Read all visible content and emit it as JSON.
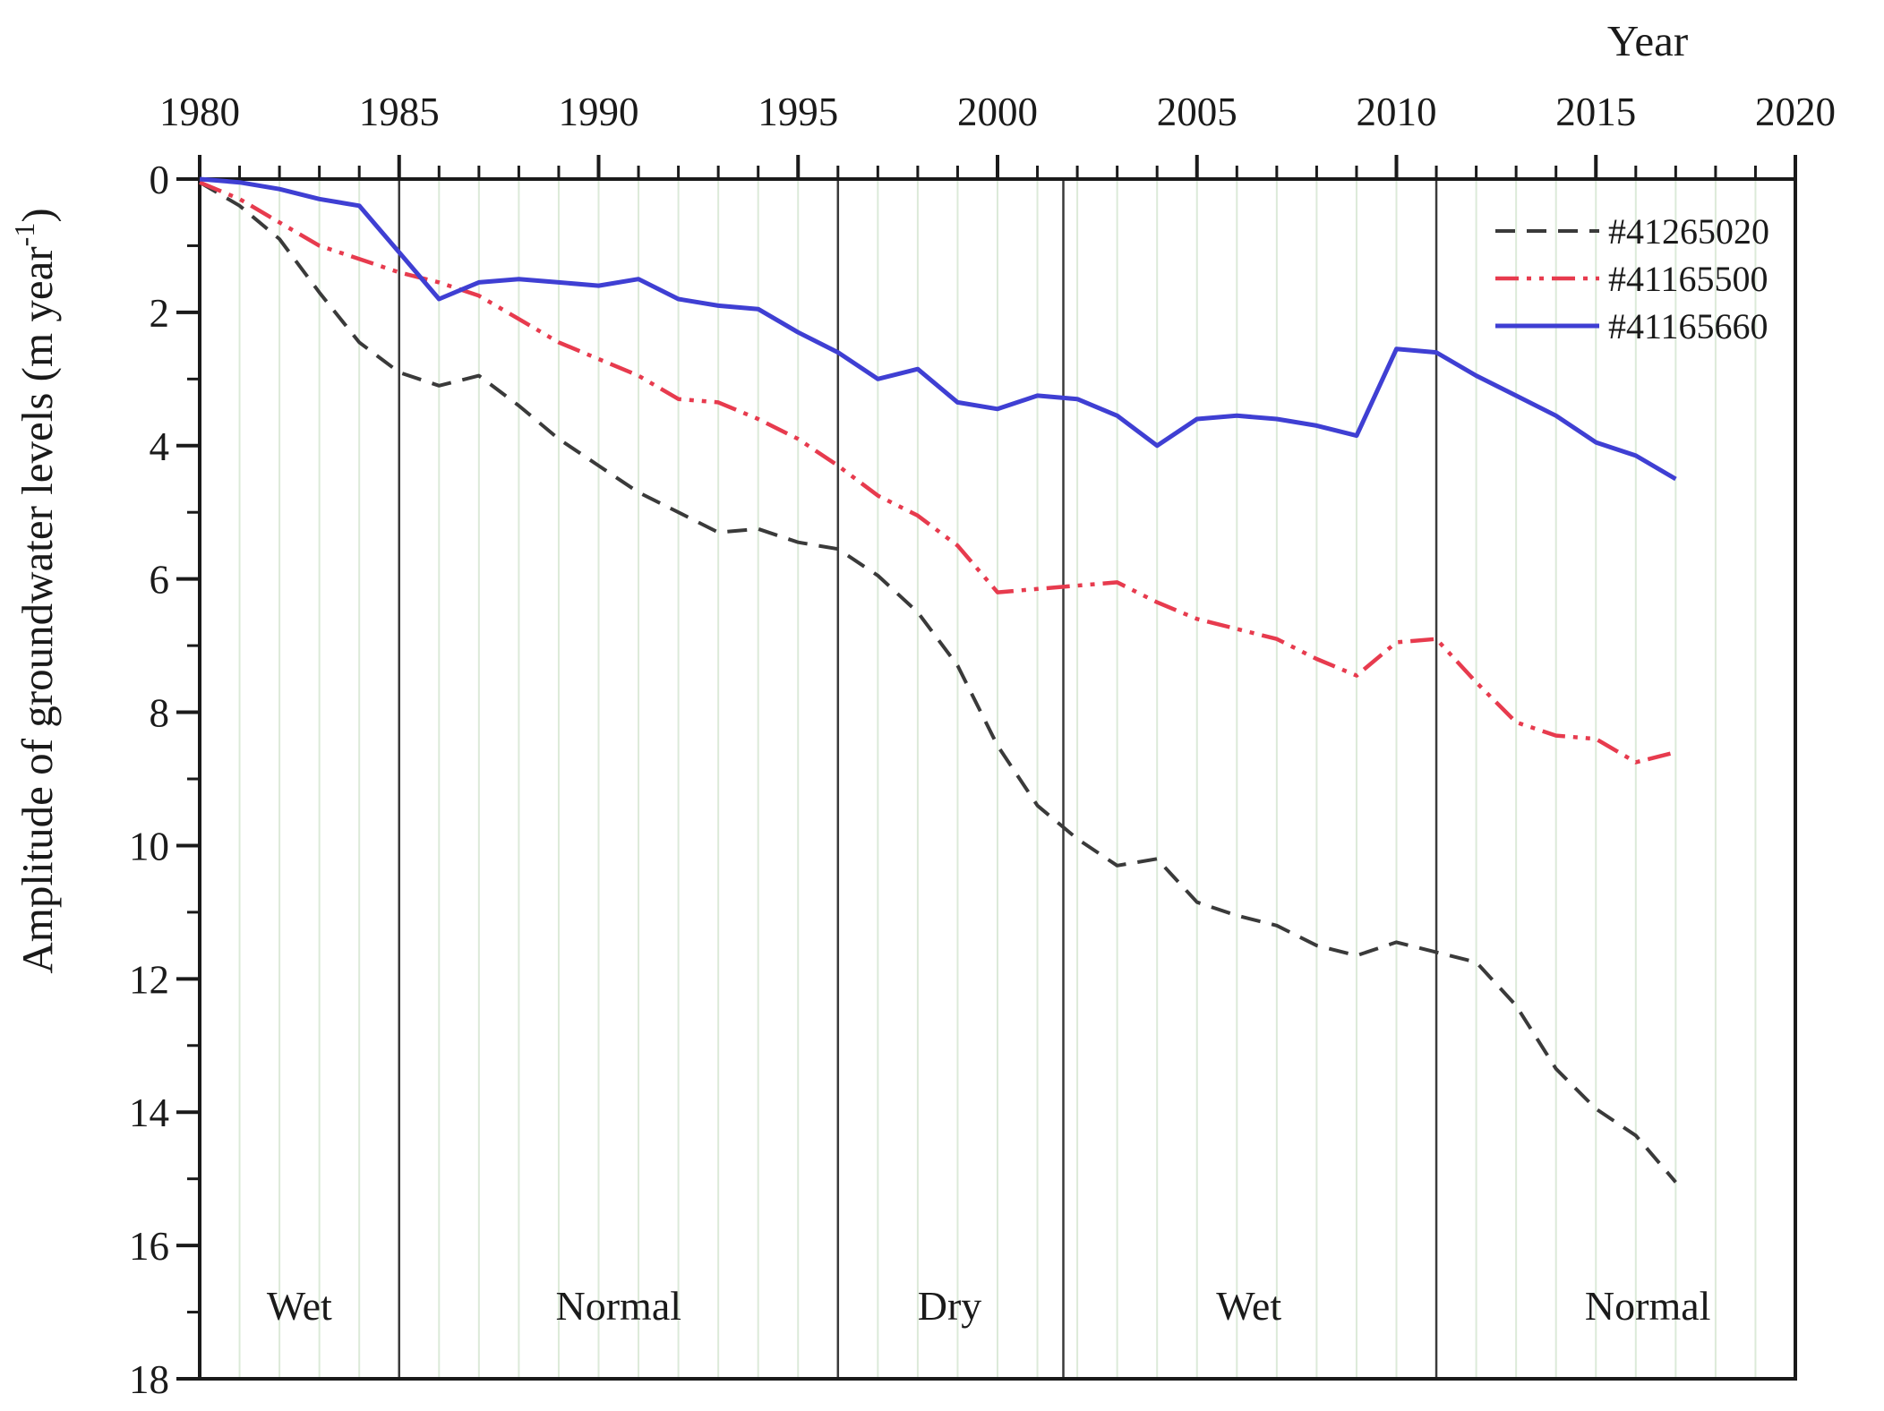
{
  "figure": {
    "axis": {
      "x_title": "Year",
      "y_title_main": "Amplitude of groundwater levels (m year",
      "y_title_sup": "-1",
      "y_title_close": ")"
    }
  },
  "chart_data": {
    "type": "line",
    "title": "",
    "xlabel": "Year",
    "ylabel": "Amplitude of groundwater levels (m year-1)",
    "xlim": [
      1980,
      2020
    ],
    "ylim": [
      0,
      18
    ],
    "y_axis_inverted": true,
    "x_ticks_major": [
      1980,
      1985,
      1990,
      1995,
      2000,
      2005,
      2010,
      2015,
      2020
    ],
    "x_ticks_minor_step": 1,
    "y_ticks_major": [
      0,
      2,
      4,
      6,
      8,
      10,
      12,
      14,
      16,
      18
    ],
    "y_ticks_minor_step": 1,
    "grid": {
      "vertical_yearly": true,
      "color": "#dcead9"
    },
    "legend": {
      "position": "top-right"
    },
    "sections": [
      {
        "label": "Wet",
        "from": 1980,
        "to": 1985,
        "label_year": 1982.5
      },
      {
        "label": "Normal",
        "from": 1985,
        "to": 1996,
        "label_year": 1990.5
      },
      {
        "label": "Dry",
        "from": 1996,
        "to": 2001.65,
        "label_year": 1998.8
      },
      {
        "label": "Wet",
        "from": 2001.65,
        "to": 2011,
        "label_year": 2006.3
      },
      {
        "label": "Normal",
        "from": 2011,
        "to": 2020,
        "label_year": 2016.3
      }
    ],
    "x": [
      1980,
      1981,
      1982,
      1983,
      1984,
      1985,
      1986,
      1987,
      1988,
      1989,
      1990,
      1991,
      1992,
      1993,
      1994,
      1995,
      1996,
      1997,
      1998,
      1999,
      2000,
      2001,
      2002,
      2003,
      2004,
      2005,
      2006,
      2007,
      2008,
      2009,
      2010,
      2011,
      2012,
      2013,
      2014,
      2015,
      2016,
      2017
    ],
    "series": [
      {
        "name": "#41265020",
        "color": "#3a3a3a",
        "line_style": "dashed",
        "width": 4,
        "values": [
          0.05,
          0.4,
          0.9,
          1.7,
          2.45,
          2.9,
          3.1,
          2.95,
          3.4,
          3.9,
          4.3,
          4.7,
          5.0,
          5.3,
          5.25,
          5.45,
          5.55,
          5.95,
          6.5,
          7.3,
          8.5,
          9.4,
          9.9,
          10.3,
          10.2,
          10.85,
          11.05,
          11.2,
          11.5,
          11.65,
          11.45,
          11.6,
          11.75,
          12.4,
          13.35,
          13.95,
          14.35,
          15.05
        ]
      },
      {
        "name": "#41165500",
        "color": "#e73b4e",
        "line_style": "dash-dot-dot",
        "width": 4.5,
        "values": [
          0.05,
          0.3,
          0.65,
          1.0,
          1.2,
          1.4,
          1.55,
          1.75,
          2.1,
          2.45,
          2.7,
          2.95,
          3.3,
          3.35,
          3.6,
          3.9,
          4.3,
          4.75,
          5.05,
          5.5,
          6.2,
          6.15,
          6.1,
          6.05,
          6.35,
          6.6,
          6.75,
          6.9,
          7.2,
          7.45,
          6.95,
          6.9,
          7.55,
          8.15,
          8.35,
          8.4,
          8.75,
          8.6
        ]
      },
      {
        "name": "#41165660",
        "color": "#3f3fd3",
        "line_style": "solid",
        "width": 5,
        "values": [
          0.0,
          0.05,
          0.15,
          0.3,
          0.4,
          1.1,
          1.8,
          1.55,
          1.5,
          1.55,
          1.6,
          1.5,
          1.8,
          1.9,
          1.95,
          2.3,
          2.6,
          3.0,
          2.85,
          3.35,
          3.45,
          3.25,
          3.3,
          3.55,
          4.0,
          3.6,
          3.55,
          3.6,
          3.7,
          3.85,
          2.55,
          2.6,
          2.95,
          3.25,
          3.55,
          3.95,
          4.15,
          4.5
        ]
      }
    ]
  }
}
